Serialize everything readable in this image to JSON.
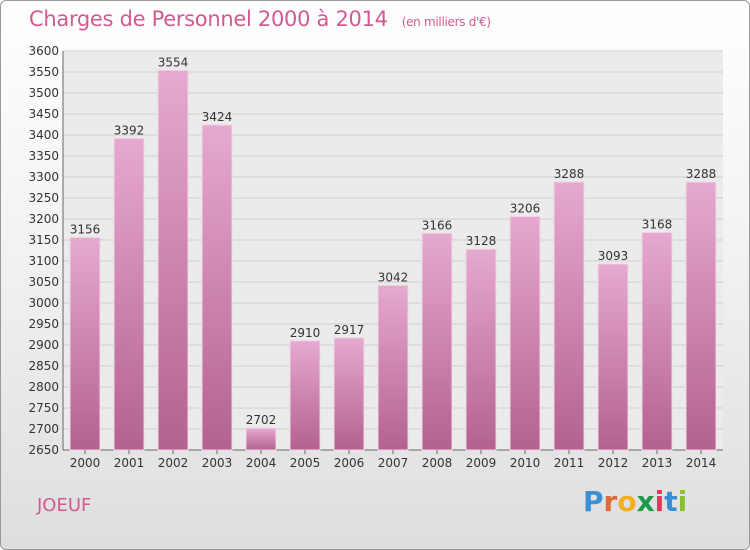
{
  "header": {
    "title": "Charges de Personnel 2000 à 2014",
    "subtitle": "(en milliers d'€)"
  },
  "footer": {
    "commune": "JOEUF",
    "logo_text": "Proxiti"
  },
  "colors": {
    "title": "#d25a92",
    "bar_top": "#e6a9cf",
    "bar_bottom": "#b3628e",
    "logo_letters": [
      "#3a8fd4",
      "#e06a3a",
      "#f0b020",
      "#1a9a4a",
      "#e03a5a",
      "#3a8fd4",
      "#8ac030"
    ]
  },
  "chart_data": {
    "type": "bar",
    "title": "Charges de Personnel 2000 à 2014",
    "subtitle": "(en milliers d'€)",
    "categories": [
      "2000",
      "2001",
      "2002",
      "2003",
      "2004",
      "2005",
      "2006",
      "2007",
      "2008",
      "2009",
      "2010",
      "2011",
      "2012",
      "2013",
      "2014"
    ],
    "values": [
      3156,
      3392,
      3554,
      3424,
      2702,
      2910,
      2917,
      3042,
      3166,
      3128,
      3206,
      3288,
      3093,
      3168,
      3288
    ],
    "value_labels": [
      "3156",
      "3392",
      "3554",
      "3424",
      "2702",
      "2910",
      "2917",
      "3042",
      "3166",
      "3128",
      "3206",
      "3288",
      "3093",
      "3168",
      "3288"
    ],
    "ylim": [
      2650,
      3600
    ],
    "yticks": [
      2650,
      2700,
      2750,
      2800,
      2850,
      2900,
      2950,
      3000,
      3050,
      3100,
      3150,
      3200,
      3250,
      3300,
      3350,
      3400,
      3450,
      3500,
      3550,
      3600
    ],
    "ytick_labels": [
      "2650",
      "2700",
      "2750",
      "2800",
      "2850",
      "2900",
      "2950",
      "3000",
      "3050",
      "3100",
      "3150",
      "3200",
      "3250",
      "3300",
      "3350",
      "3400",
      "3450",
      "3500",
      "3550",
      "3600"
    ],
    "grid": true,
    "legend": "none"
  }
}
